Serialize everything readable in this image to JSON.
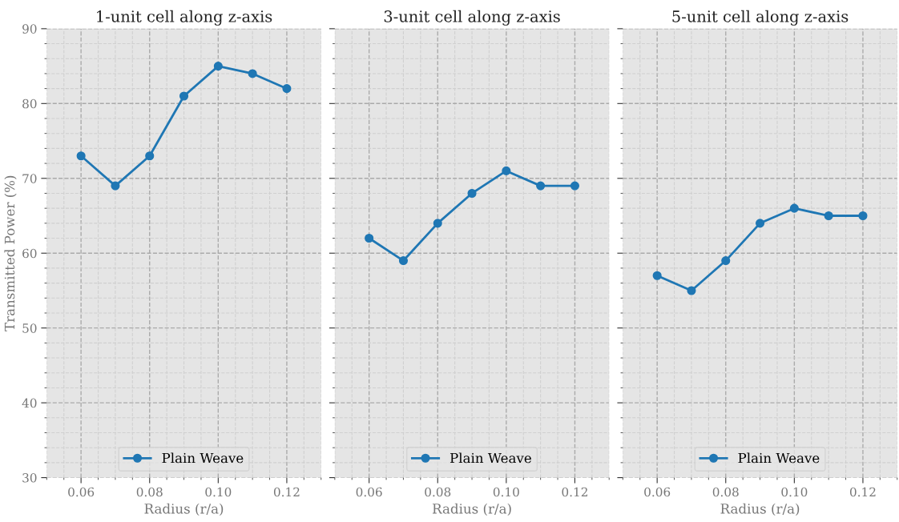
{
  "chart_data": [
    {
      "type": "line",
      "title": "1-unit cell along z-axis",
      "xlabel": "Radius (r/a)",
      "ylabel": "Transmitted Power (%)",
      "x": [
        0.06,
        0.07,
        0.08,
        0.09,
        0.1,
        0.11,
        0.12
      ],
      "series": [
        {
          "name": "Plain Weave",
          "color": "#1f77b4",
          "values": [
            73,
            69,
            73,
            81,
            85,
            84,
            82
          ]
        }
      ],
      "xlim": [
        0.05,
        0.13
      ],
      "xticks": [
        {
          "value": 0.06,
          "label": "0.06"
        },
        {
          "value": 0.08,
          "label": "0.08"
        },
        {
          "value": 0.1,
          "label": "0.10"
        },
        {
          "value": 0.12,
          "label": "0.12"
        }
      ],
      "ylim": [
        30,
        90
      ],
      "yticks": [
        30,
        40,
        50,
        60,
        70,
        80,
        90
      ],
      "grid": true,
      "legend": "bottom",
      "marker": "circle",
      "line_style": "solid"
    },
    {
      "type": "line",
      "title": "3-unit cell along z-axis",
      "xlabel": "Radius (r/a)",
      "x": [
        0.06,
        0.07,
        0.08,
        0.09,
        0.1,
        0.11,
        0.12
      ],
      "series": [
        {
          "name": "Plain Weave",
          "color": "#1f77b4",
          "values": [
            62,
            59,
            64,
            68,
            71,
            69,
            69
          ]
        }
      ],
      "xlim": [
        0.05,
        0.13
      ],
      "xticks": [
        {
          "value": 0.06,
          "label": "0.06"
        },
        {
          "value": 0.08,
          "label": "0.08"
        },
        {
          "value": 0.1,
          "label": "0.10"
        },
        {
          "value": 0.12,
          "label": "0.12"
        }
      ],
      "ylim": [
        30,
        90
      ],
      "yticks": [
        30,
        40,
        50,
        60,
        70,
        80,
        90
      ],
      "tick_labels": "x",
      "grid": true,
      "legend": "bottom",
      "marker": "circle",
      "line_style": "solid"
    },
    {
      "type": "line",
      "title": "5-unit cell along z-axis",
      "xlabel": "Radius (r/a)",
      "x": [
        0.06,
        0.07,
        0.08,
        0.09,
        0.1,
        0.11,
        0.12
      ],
      "series": [
        {
          "name": "Plain Weave",
          "color": "#1f77b4",
          "values": [
            57,
            55,
            59,
            64,
            66,
            65,
            65
          ]
        }
      ],
      "xlim": [
        0.05,
        0.13
      ],
      "xticks": [
        {
          "value": 0.06,
          "label": "0.06"
        },
        {
          "value": 0.08,
          "label": "0.08"
        },
        {
          "value": 0.1,
          "label": "0.10"
        },
        {
          "value": 0.12,
          "label": "0.12"
        }
      ],
      "ylim": [
        30,
        90
      ],
      "yticks": [
        30,
        40,
        50,
        60,
        70,
        80,
        90
      ],
      "tick_labels": "x",
      "grid": true,
      "legend": "bottom",
      "marker": "circle",
      "line_style": "solid"
    }
  ]
}
